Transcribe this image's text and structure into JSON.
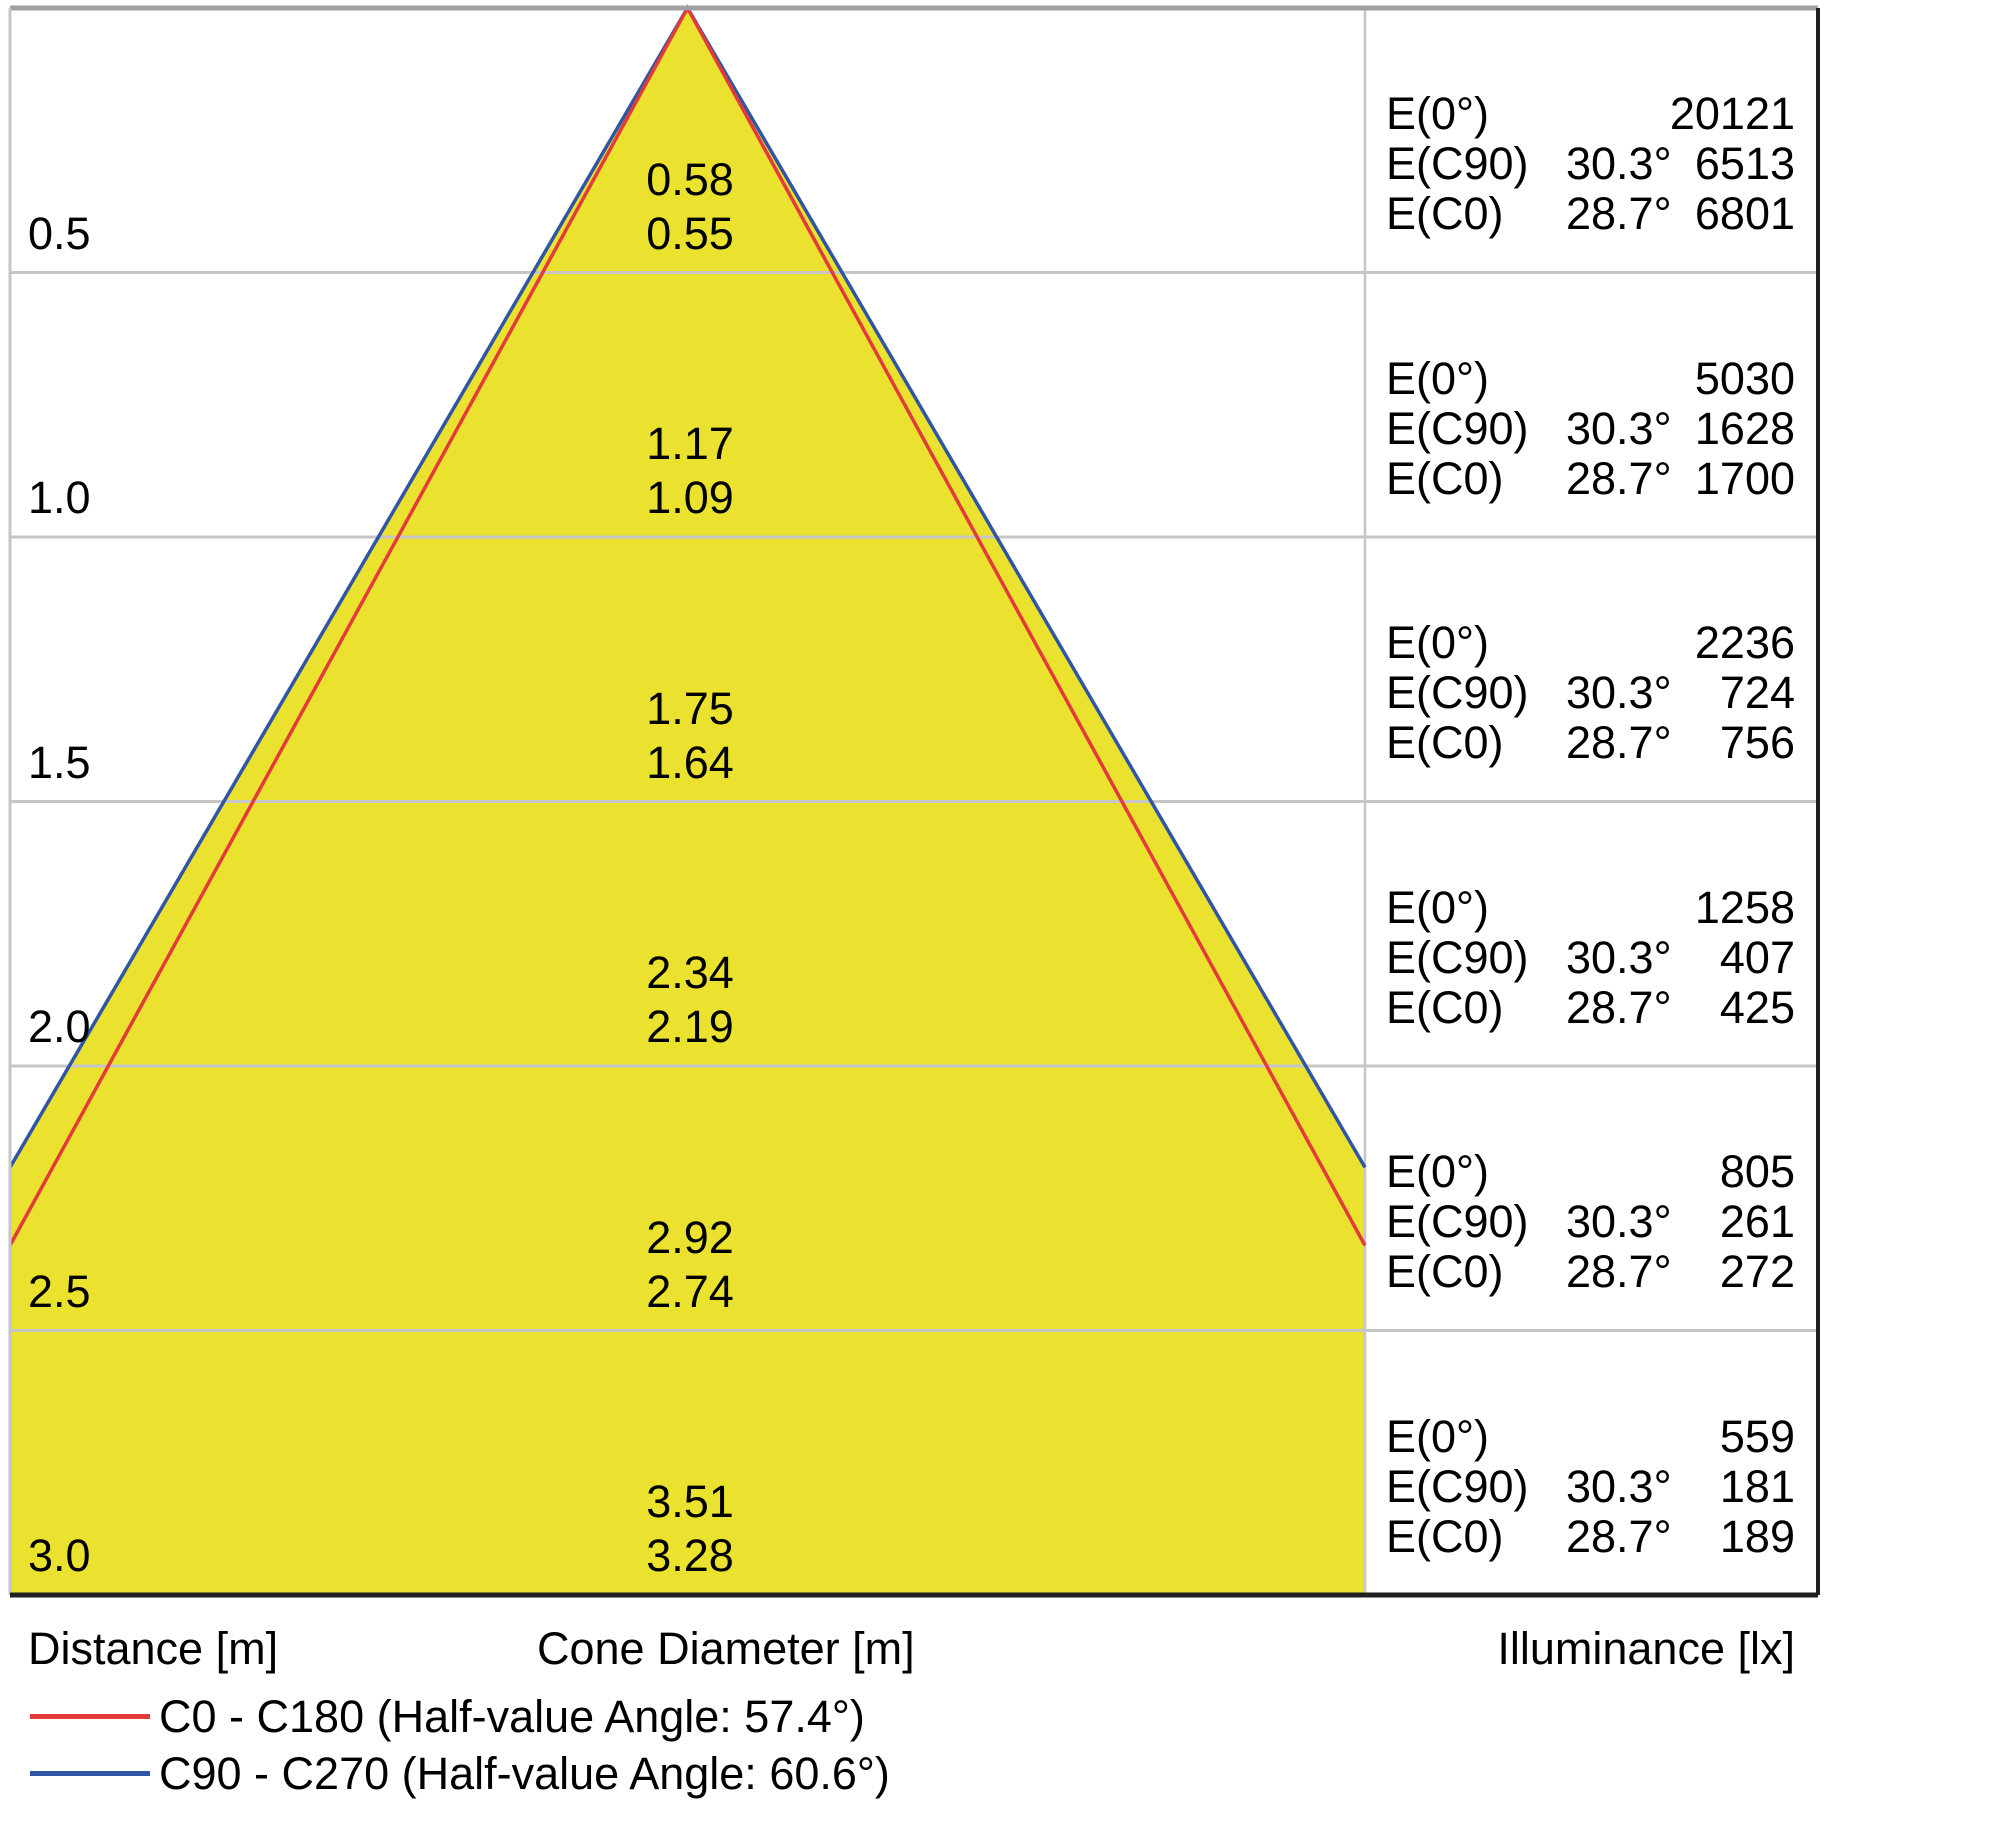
{
  "chart_data": {
    "type": "area",
    "subtype": "photometric-cone-diagram",
    "columns": {
      "distance": "Distance [m]",
      "cone_diameter": "Cone Diameter [m]",
      "illuminance": "Illuminance [lx]"
    },
    "legend": [
      {
        "label": "C0 - C180 (Half-value Angle: 57.4°)",
        "color": "#e23b3a"
      },
      {
        "label": "C90 - C270 (Half-value Angle: 60.6°)",
        "color": "#2f55a4"
      }
    ],
    "labels": {
      "e0": "E(0°)",
      "ec90": "E(C90)",
      "ec0": "E(C0)",
      "angle_c90": "30.3°",
      "angle_c0": "28.7°"
    },
    "half_angle_c90_deg": 30.3,
    "half_angle_c0_deg": 28.7,
    "half_value_angle_c0_c180_deg": 57.4,
    "half_value_angle_c90_c270_deg": 60.6,
    "distances_m": [
      0.5,
      1.0,
      1.5,
      2.0,
      2.5,
      3.0
    ],
    "cone_diameter_c90_m": [
      0.58,
      1.17,
      1.75,
      2.34,
      2.92,
      3.51
    ],
    "cone_diameter_c0_m": [
      0.55,
      1.09,
      1.64,
      2.19,
      2.74,
      3.28
    ],
    "illuminance_E0_lx": [
      20121,
      5030,
      2236,
      1258,
      805,
      559
    ],
    "illuminance_EC90_lx": [
      6513,
      1628,
      724,
      407,
      261,
      181
    ],
    "illuminance_EC0_lx": [
      6801,
      1700,
      756,
      425,
      272,
      189
    ],
    "colors": {
      "cone_fill": "#eae22f",
      "c0_line": "#e23b3a",
      "c90_line": "#2f55a4",
      "grid": "#c6c6c6",
      "border_top": "#9f9f9f",
      "border_dark": "#1f1f1f"
    },
    "rows": [
      {
        "distance": "0.5",
        "d_c90": "0.58",
        "d_c0": "0.55",
        "e0": "20121",
        "ec90": "6513",
        "ec0": "6801"
      },
      {
        "distance": "1.0",
        "d_c90": "1.17",
        "d_c0": "1.09",
        "e0": "5030",
        "ec90": "1628",
        "ec0": "1700"
      },
      {
        "distance": "1.5",
        "d_c90": "1.75",
        "d_c0": "1.64",
        "e0": "2236",
        "ec90": "724",
        "ec0": "756"
      },
      {
        "distance": "2.0",
        "d_c90": "2.34",
        "d_c0": "2.19",
        "e0": "1258",
        "ec90": "407",
        "ec0": "425"
      },
      {
        "distance": "2.5",
        "d_c90": "2.92",
        "d_c0": "2.74",
        "e0": "805",
        "ec90": "261",
        "ec0": "272"
      },
      {
        "distance": "3.0",
        "d_c90": "3.51",
        "d_c0": "3.28",
        "e0": "559",
        "ec90": "181",
        "ec0": "189"
      }
    ]
  }
}
